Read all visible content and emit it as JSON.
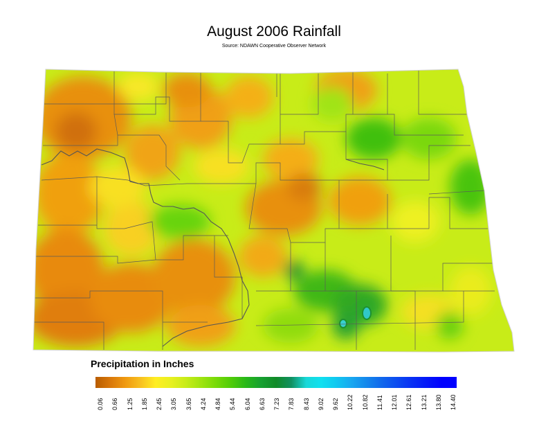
{
  "title": "August 2006 Rainfall",
  "subtitle": "Source: NDAWN Cooperative Observer Network",
  "legend": {
    "title": "Precipitation in Inches",
    "ticks": [
      "0.06",
      "0.66",
      "1.25",
      "1.85",
      "2.45",
      "3.05",
      "3.65",
      "4.24",
      "4.84",
      "5.44",
      "6.04",
      "6.63",
      "7.23",
      "7.83",
      "8.43",
      "9.02",
      "9.62",
      "10.22",
      "10.82",
      "11.41",
      "12.01",
      "12.61",
      "13.21",
      "13.80",
      "14.40"
    ],
    "colors": [
      "#b85c00",
      "#d9780a",
      "#f09a10",
      "#f8c020",
      "#ffee22",
      "#e8f020",
      "#c8ec18",
      "#a0e410",
      "#78da08",
      "#50cc08",
      "#28b818",
      "#16a030",
      "#108a28",
      "#109060",
      "#18d8d8",
      "#10e0f0",
      "#10c8f0",
      "#18a8f0",
      "#1488ec",
      "#1068ec",
      "#0c4cf0",
      "#0830f4",
      "#0418f8",
      "#0000ff",
      "#0000ff"
    ]
  },
  "map": {
    "state": "North Dakota",
    "base_color": "#b8e418",
    "county_line_color": "#5a5a5a"
  }
}
